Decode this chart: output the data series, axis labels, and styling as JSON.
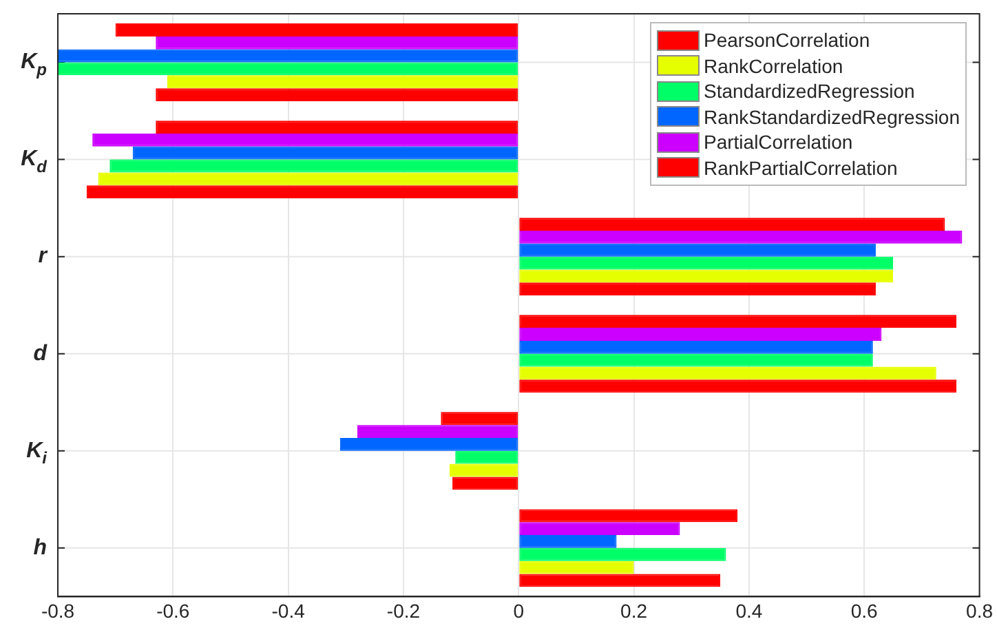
{
  "chart_data": {
    "type": "bar",
    "orientation": "horizontal",
    "categories": [
      "K$_{p}$",
      "K$_{d}$",
      "r",
      "d",
      "K$_{i}$",
      "h"
    ],
    "series": [
      {
        "name": "RankPartialCorrelation",
        "color": "#ff0000",
        "values": [
          -0.7,
          -0.63,
          0.74,
          0.76,
          -0.135,
          0.38
        ]
      },
      {
        "name": "PartialCorrelation",
        "color": "#cc00ff",
        "values": [
          -0.63,
          -0.74,
          0.77,
          0.63,
          -0.28,
          0.28
        ]
      },
      {
        "name": "RankStandardizedRegression",
        "color": "#0066ff",
        "values": [
          -0.8,
          -0.67,
          0.62,
          0.615,
          -0.31,
          0.17
        ]
      },
      {
        "name": "StandardizedRegression",
        "color": "#00ff66",
        "values": [
          -0.8,
          -0.71,
          0.65,
          0.615,
          -0.11,
          0.36
        ]
      },
      {
        "name": "RankCorrelation",
        "color": "#e6ff00",
        "values": [
          -0.61,
          -0.73,
          0.65,
          0.725,
          -0.12,
          0.2
        ]
      },
      {
        "name": "PearsonCorrelation",
        "color": "#ff0000",
        "values": [
          -0.63,
          -0.75,
          0.62,
          0.76,
          -0.115,
          0.35
        ]
      }
    ],
    "xlim": [
      -0.8,
      0.8
    ],
    "xticks": [
      -0.8,
      -0.6,
      -0.4,
      -0.2,
      0,
      0.2,
      0.4,
      0.6,
      0.8
    ],
    "grid": true,
    "legend": "top right"
  }
}
